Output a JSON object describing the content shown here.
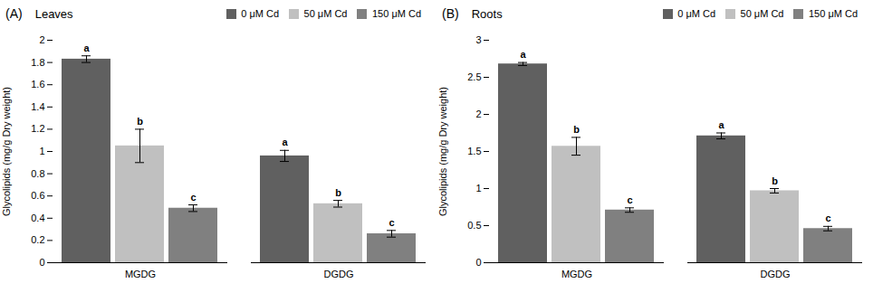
{
  "chart_data": [
    {
      "type": "bar",
      "title": "Leaves",
      "annotations": [
        "(A)"
      ],
      "categories": [
        "MGDG",
        "DGDG"
      ],
      "series": [
        {
          "name": "0 μM Cd",
          "color": "#606060",
          "values": [
            1.83,
            0.96
          ],
          "errors": [
            0.03,
            0.05
          ],
          "sig_labels": [
            "a",
            "a"
          ]
        },
        {
          "name": "50 μM Cd",
          "color": "#c0c0c0",
          "values": [
            1.05,
            0.53
          ],
          "errors": [
            0.15,
            0.03
          ],
          "sig_labels": [
            "b",
            "b"
          ]
        },
        {
          "name": "150 μM Cd",
          "color": "#808080",
          "values": [
            0.49,
            0.26
          ],
          "errors": [
            0.03,
            0.03
          ],
          "sig_labels": [
            "c",
            "c"
          ]
        }
      ],
      "ylabel": "Glycolipids (mg/g Dry weight)",
      "ylim": [
        0,
        2.0
      ],
      "yticks": [
        0,
        0.2,
        0.4,
        0.6,
        0.8,
        1.0,
        1.2,
        1.4,
        1.6,
        1.8,
        2.0
      ],
      "grid": false,
      "legend": "upper right"
    },
    {
      "type": "bar",
      "title": "Roots",
      "annotations": [
        "(B)"
      ],
      "categories": [
        "MGDG",
        "DGDG"
      ],
      "series": [
        {
          "name": "0 μM Cd",
          "color": "#606060",
          "values": [
            2.68,
            1.71
          ],
          "errors": [
            0.02,
            0.04
          ],
          "sig_labels": [
            "a",
            "a"
          ]
        },
        {
          "name": "50 μM Cd",
          "color": "#c0c0c0",
          "values": [
            1.57,
            0.97
          ],
          "errors": [
            0.12,
            0.03
          ],
          "sig_labels": [
            "b",
            "b"
          ]
        },
        {
          "name": "150 μM Cd",
          "color": "#808080",
          "values": [
            0.71,
            0.46
          ],
          "errors": [
            0.03,
            0.03
          ],
          "sig_labels": [
            "c",
            "c"
          ]
        }
      ],
      "ylabel": "Glycolipids (mg/g Dry weight)",
      "ylim": [
        0,
        3.0
      ],
      "yticks": [
        0,
        0.5,
        1.0,
        1.5,
        2.0,
        2.5,
        3.0
      ],
      "grid": false,
      "legend": "upper right"
    }
  ]
}
